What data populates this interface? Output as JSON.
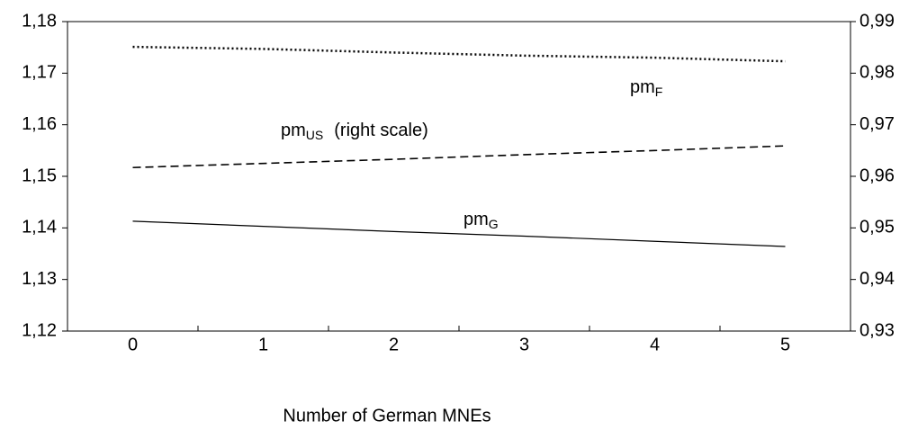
{
  "chart_data": {
    "type": "line",
    "xlabel": "Number of German MNEs",
    "categories": [
      "0",
      "1",
      "2",
      "3",
      "4",
      "5"
    ],
    "ylim": [
      1.12,
      1.18
    ],
    "yticks": [
      {
        "value": 1.12,
        "label": "1,12"
      },
      {
        "value": 1.13,
        "label": "1,13"
      },
      {
        "value": 1.14,
        "label": "1,14"
      },
      {
        "value": 1.15,
        "label": "1,15"
      },
      {
        "value": 1.16,
        "label": "1,16"
      },
      {
        "value": 1.17,
        "label": "1,17"
      },
      {
        "value": 1.18,
        "label": "1,18"
      }
    ],
    "y2lim": [
      0.93,
      0.99
    ],
    "y2ticks": [
      {
        "value": 0.93,
        "label": "0,93"
      },
      {
        "value": 0.94,
        "label": "0,94"
      },
      {
        "value": 0.95,
        "label": "0,95"
      },
      {
        "value": 0.96,
        "label": "0,96"
      },
      {
        "value": 0.97,
        "label": "0,97"
      },
      {
        "value": 0.98,
        "label": "0,98"
      },
      {
        "value": 0.99,
        "label": "0,99"
      }
    ],
    "grid": false,
    "series": [
      {
        "name": "pm",
        "subscript": "F",
        "color": "#000000",
        "style": "dotted",
        "axis": "y",
        "values": [
          1.1751,
          1.1747,
          1.174,
          1.1734,
          1.173,
          1.1723
        ]
      },
      {
        "name": "pm",
        "subscript": "US",
        "note": "(right scale)",
        "color": "#000000",
        "style": "dashed",
        "axis": "y2",
        "values": [
          0.9617,
          0.9625,
          0.9633,
          0.9642,
          0.965,
          0.9659
        ]
      },
      {
        "name": "pm",
        "subscript": "G",
        "color": "#000000",
        "style": "solid",
        "axis": "y",
        "values": [
          1.1413,
          1.1403,
          1.1393,
          1.1384,
          1.1374,
          1.1364
        ]
      }
    ]
  }
}
